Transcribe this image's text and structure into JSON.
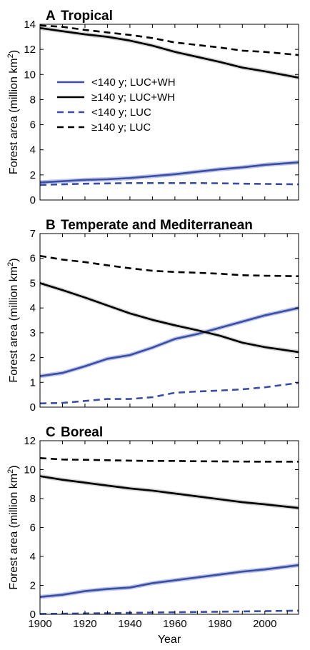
{
  "chart_data": [
    {
      "type": "line",
      "panel": "A",
      "title": "Tropical",
      "xlabel": "",
      "ylabel": "Forest area (million km2)",
      "xlim": [
        1900,
        2015
      ],
      "ylim": [
        0,
        14
      ],
      "yticks": [
        0,
        2,
        4,
        6,
        8,
        10,
        12,
        14
      ],
      "x": [
        1900,
        1910,
        1920,
        1930,
        1940,
        1950,
        1960,
        1970,
        1980,
        1990,
        2000,
        2015
      ],
      "legend": {
        "position": "center-left"
      },
      "series": [
        {
          "name": "<140 y; LUC+WH",
          "color": "#3a4fa3",
          "dash": "solid",
          "band": "#a9b3e0",
          "values": [
            1.4,
            1.5,
            1.6,
            1.65,
            1.75,
            1.9,
            2.05,
            2.25,
            2.45,
            2.6,
            2.8,
            3.0
          ]
        },
        {
          "name": "≥140 y; LUC+WH",
          "color": "#000000",
          "dash": "solid",
          "band": "#c8c8c8",
          "values": [
            13.7,
            13.45,
            13.2,
            13.0,
            12.7,
            12.3,
            11.8,
            11.4,
            11.0,
            10.55,
            10.25,
            9.75
          ]
        },
        {
          "name": "<140 y; LUC",
          "color": "#3a4fa3",
          "dash": "dashed",
          "values": [
            1.2,
            1.25,
            1.3,
            1.32,
            1.35,
            1.35,
            1.35,
            1.35,
            1.33,
            1.3,
            1.28,
            1.25
          ]
        },
        {
          "name": "≥140 y; LUC",
          "color": "#000000",
          "dash": "dashed",
          "values": [
            13.9,
            13.8,
            13.55,
            13.35,
            13.15,
            12.9,
            12.55,
            12.35,
            12.15,
            11.9,
            11.8,
            11.55
          ]
        }
      ]
    },
    {
      "type": "line",
      "panel": "B",
      "title": "Temperate and Mediterranean",
      "xlabel": "",
      "ylabel": "Forest area (million km2)",
      "xlim": [
        1900,
        2015
      ],
      "ylim": [
        0,
        7
      ],
      "yticks": [
        0,
        1,
        2,
        3,
        4,
        5,
        6,
        7
      ],
      "x": [
        1900,
        1910,
        1920,
        1930,
        1940,
        1950,
        1960,
        1970,
        1980,
        1990,
        2000,
        2015
      ],
      "series": [
        {
          "name": "<140 y; LUC+WH",
          "color": "#3a4fa3",
          "dash": "solid",
          "band": "#a9b3e0",
          "values": [
            1.25,
            1.38,
            1.65,
            1.95,
            2.1,
            2.4,
            2.75,
            2.95,
            3.2,
            3.45,
            3.7,
            4.0
          ]
        },
        {
          "name": "≥140 y; LUC+WH",
          "color": "#000000",
          "dash": "solid",
          "band": "#c8c8c8",
          "values": [
            5.0,
            4.72,
            4.42,
            4.1,
            3.78,
            3.52,
            3.3,
            3.1,
            2.88,
            2.6,
            2.42,
            2.22
          ]
        },
        {
          "name": "<140 y; LUC",
          "color": "#3a4fa3",
          "dash": "dashed",
          "values": [
            0.15,
            0.17,
            0.25,
            0.33,
            0.33,
            0.4,
            0.58,
            0.63,
            0.67,
            0.72,
            0.8,
            0.98
          ]
        },
        {
          "name": "≥140 y; LUC",
          "color": "#000000",
          "dash": "dashed",
          "values": [
            6.1,
            5.95,
            5.85,
            5.72,
            5.6,
            5.5,
            5.45,
            5.42,
            5.38,
            5.32,
            5.3,
            5.28
          ]
        }
      ]
    },
    {
      "type": "line",
      "panel": "C",
      "title": "Boreal",
      "xlabel": "Year",
      "ylabel": "Forest area (million km2)",
      "xlim": [
        1900,
        2015
      ],
      "ylim": [
        0,
        12
      ],
      "yticks": [
        0,
        2,
        4,
        6,
        8,
        10,
        12
      ],
      "xticks": [
        1900,
        1920,
        1940,
        1960,
        1980,
        2000
      ],
      "x": [
        1900,
        1910,
        1920,
        1930,
        1940,
        1950,
        1960,
        1970,
        1980,
        1990,
        2000,
        2015
      ],
      "series": [
        {
          "name": "<140 y; LUC+WH",
          "color": "#3a4fa3",
          "dash": "solid",
          "band": "#a9b3e0",
          "values": [
            1.2,
            1.35,
            1.6,
            1.75,
            1.85,
            2.15,
            2.35,
            2.55,
            2.75,
            2.95,
            3.1,
            3.4
          ]
        },
        {
          "name": "≥140 y; LUC+WH",
          "color": "#000000",
          "dash": "solid",
          "band": "#c8c8c8",
          "values": [
            9.55,
            9.3,
            9.1,
            8.9,
            8.7,
            8.55,
            8.35,
            8.15,
            7.95,
            7.75,
            7.6,
            7.35
          ]
        },
        {
          "name": "<140 y; LUC",
          "color": "#3a4fa3",
          "dash": "dashed",
          "values": [
            0.03,
            0.04,
            0.06,
            0.08,
            0.1,
            0.12,
            0.14,
            0.16,
            0.18,
            0.2,
            0.22,
            0.25
          ]
        },
        {
          "name": "≥140 y; LUC",
          "color": "#000000",
          "dash": "dashed",
          "values": [
            10.8,
            10.7,
            10.68,
            10.65,
            10.62,
            10.6,
            10.6,
            10.58,
            10.57,
            10.56,
            10.55,
            10.55
          ]
        }
      ]
    }
  ]
}
